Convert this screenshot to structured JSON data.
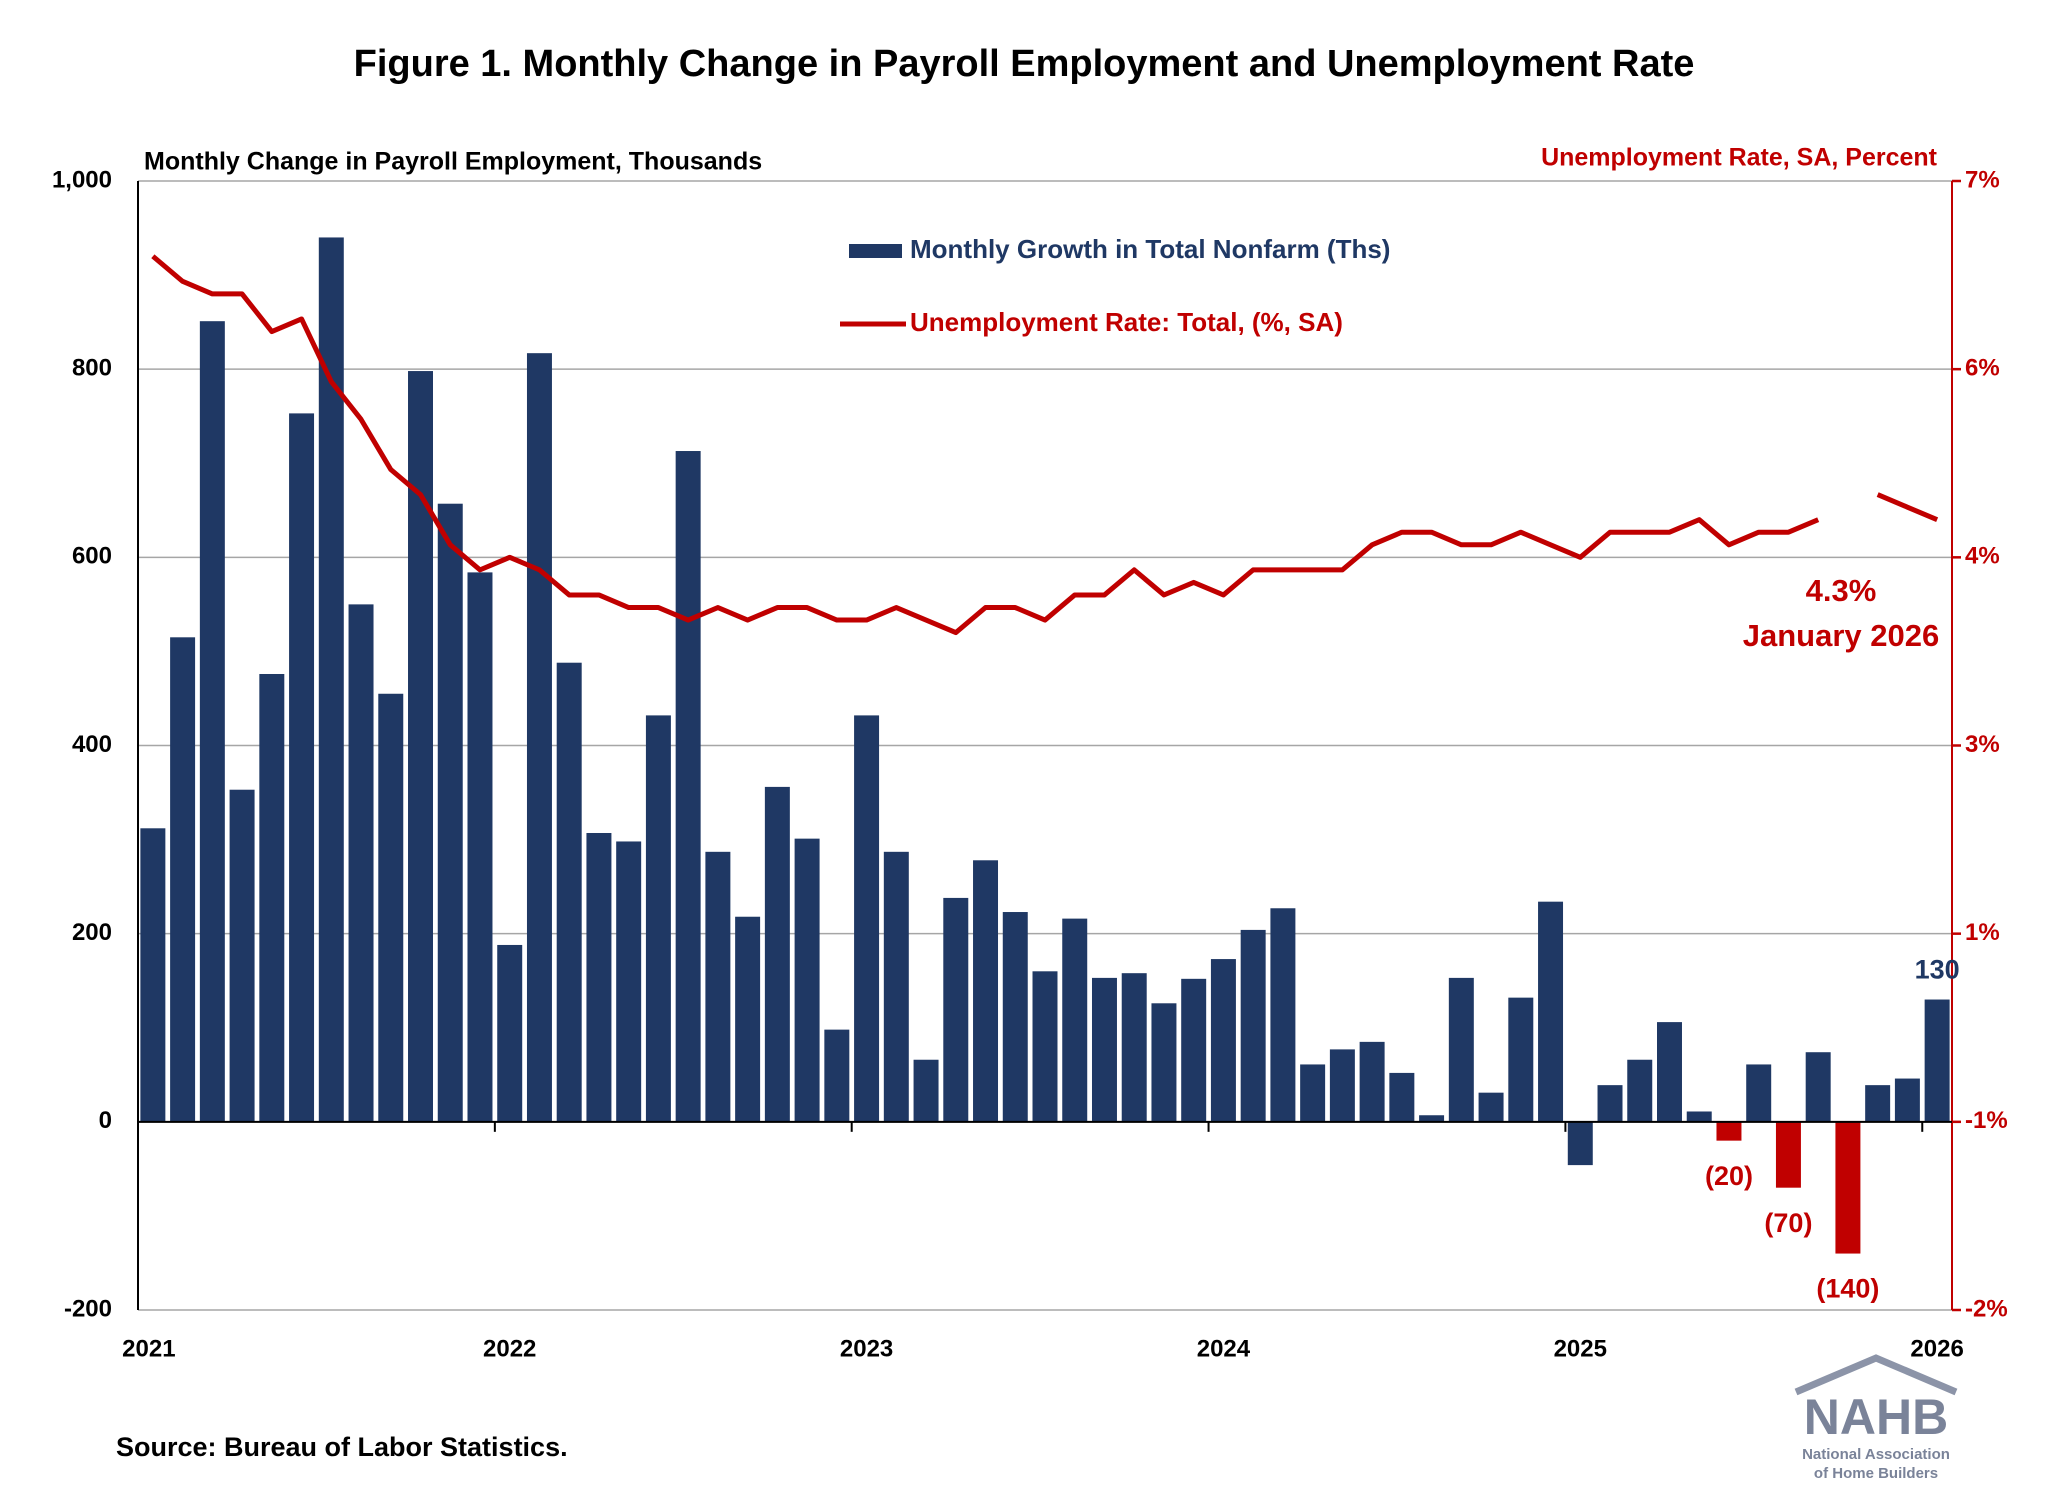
{
  "chart_data": {
    "type": "bar",
    "title": "Figure 1. Monthly Change in Payroll Employment and Unemployment Rate",
    "y_axis_title": "Monthly Change in Payroll Employment, Thousands",
    "y2_axis_title": "Unemployment Rate, SA, Percent",
    "categories": [
      "2021",
      null,
      null,
      null,
      null,
      null,
      null,
      null,
      null,
      null,
      null,
      null,
      "2022",
      null,
      null,
      null,
      null,
      null,
      null,
      null,
      null,
      null,
      null,
      null,
      "2023",
      null,
      null,
      null,
      null,
      null,
      null,
      null,
      null,
      null,
      null,
      null,
      "2024",
      null,
      null,
      null,
      null,
      null,
      null,
      null,
      null,
      null,
      null,
      null,
      "2025",
      null,
      null,
      null,
      null,
      null,
      null,
      null,
      null,
      null,
      null,
      null,
      "2026"
    ],
    "ylim": [
      -200,
      1000
    ],
    "yticks": [
      -200,
      0,
      200,
      400,
      600,
      {
        "value": 800,
        "label": "800"
      },
      {
        "value": 1000,
        "label": "1,000"
      }
    ],
    "y2lim": [
      -2,
      7
    ],
    "y2ticks": [
      {
        "value": -2,
        "label": "-2%"
      },
      {
        "value": -0.5,
        "label": "-1%"
      },
      {
        "value": 1,
        "label": "1%"
      },
      {
        "value": 2.5,
        "label": "3%"
      },
      {
        "value": 4,
        "label": "4%"
      },
      {
        "value": 5.5,
        "label": "6%"
      },
      {
        "value": 7,
        "label": "7%"
      }
    ],
    "grid": true,
    "series": [
      {
        "name": "Monthly Growth in Total Nonfarm (Ths)",
        "type": "bar",
        "color": "#1f3864",
        "values": [
          312,
          515,
          851,
          353,
          476,
          753,
          940,
          550,
          455,
          798,
          657,
          584,
          188,
          817,
          488,
          307,
          298,
          432,
          713,
          287,
          218,
          356,
          301,
          98,
          432,
          287,
          66,
          238,
          278,
          223,
          160,
          216,
          153,
          158,
          126,
          152,
          173,
          204,
          227,
          61,
          77,
          85,
          52,
          7,
          153,
          31,
          132,
          234,
          -46,
          39,
          66,
          106,
          11,
          -20,
          61,
          -70,
          74,
          -140,
          39,
          46,
          130
        ],
        "colors": [
          "#1f3864",
          "#1f3864",
          "#1f3864",
          "#1f3864",
          "#1f3864",
          "#1f3864",
          "#1f3864",
          "#1f3864",
          "#1f3864",
          "#1f3864",
          "#1f3864",
          "#1f3864",
          "#1f3864",
          "#1f3864",
          "#1f3864",
          "#1f3864",
          "#1f3864",
          "#1f3864",
          "#1f3864",
          "#1f3864",
          "#1f3864",
          "#1f3864",
          "#1f3864",
          "#1f3864",
          "#1f3864",
          "#1f3864",
          "#1f3864",
          "#1f3864",
          "#1f3864",
          "#1f3864",
          "#1f3864",
          "#1f3864",
          "#1f3864",
          "#1f3864",
          "#1f3864",
          "#1f3864",
          "#1f3864",
          "#1f3864",
          "#1f3864",
          "#1f3864",
          "#1f3864",
          "#1f3864",
          "#1f3864",
          "#1f3864",
          "#1f3864",
          "#1f3864",
          "#1f3864",
          "#1f3864",
          "#1f3864",
          "#1f3864",
          "#1f3864",
          "#1f3864",
          "#1f3864",
          "#c00000",
          "#1f3864",
          "#c00000",
          "#1f3864",
          "#c00000",
          "#1f3864",
          "#1f3864",
          "#1f3864"
        ],
        "value_labels": [
          null,
          null,
          null,
          null,
          null,
          null,
          null,
          null,
          null,
          null,
          null,
          null,
          null,
          null,
          null,
          null,
          null,
          null,
          null,
          null,
          null,
          null,
          null,
          null,
          null,
          null,
          null,
          null,
          null,
          null,
          null,
          null,
          null,
          null,
          null,
          null,
          null,
          null,
          null,
          null,
          null,
          null,
          null,
          null,
          null,
          null,
          null,
          null,
          null,
          null,
          null,
          null,
          null,
          "(20)",
          null,
          "(70)",
          null,
          "(140)",
          null,
          null,
          "130"
        ]
      },
      {
        "name": "Unemployment Rate: Total, (%, SA)",
        "type": "line",
        "axis": "y2",
        "color": "#c00000",
        "values": [
          6.4,
          6.2,
          6.1,
          6.1,
          5.8,
          5.9,
          5.4,
          5.1,
          4.7,
          4.5,
          4.1,
          3.9,
          4.0,
          3.9,
          3.7,
          3.7,
          3.6,
          3.6,
          3.5,
          3.6,
          3.5,
          3.6,
          3.6,
          3.5,
          3.5,
          3.6,
          3.5,
          3.4,
          3.6,
          3.6,
          3.5,
          3.7,
          3.7,
          3.9,
          3.7,
          3.8,
          3.7,
          3.9,
          3.9,
          3.9,
          3.9,
          4.1,
          4.2,
          4.2,
          4.1,
          4.1,
          4.2,
          4.1,
          4.0,
          4.2,
          4.2,
          4.2,
          4.3,
          4.1,
          4.2,
          4.2,
          4.3,
          null,
          4.5,
          4.4,
          4.3
        ]
      }
    ],
    "annotations": [
      "4.3%",
      "January 2026"
    ],
    "source": "Source: Bureau of Labor Statistics.",
    "logo": {
      "name": "NAHB",
      "line1": "National Association",
      "line2": "of Home Builders"
    }
  }
}
